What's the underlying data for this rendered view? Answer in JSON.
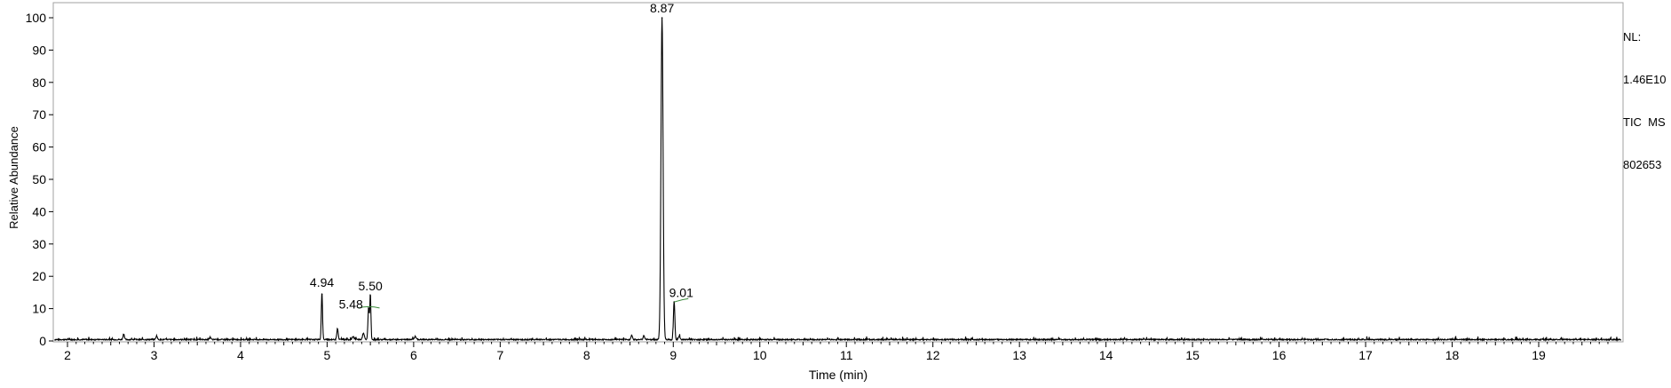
{
  "chart_data": {
    "type": "line",
    "xlabel": "Time (min)",
    "ylabel": "Relative Abundance",
    "xlim": [
      1.8,
      20.0
    ],
    "ylim": [
      0,
      102
    ],
    "x_ticks": [
      "2",
      "3",
      "4",
      "5",
      "6",
      "7",
      "8",
      "9",
      "10",
      "11",
      "12",
      "13",
      "14",
      "15",
      "16",
      "17",
      "18",
      "19"
    ],
    "y_ticks": [
      "0",
      "10",
      "20",
      "30",
      "40",
      "50",
      "60",
      "70",
      "80",
      "90",
      "100"
    ],
    "peak_labels": [
      {
        "text": "8.87",
        "x": 8.87,
        "y": 100
      },
      {
        "text": "4.94",
        "x": 4.94,
        "y": 14.5
      },
      {
        "text": "5.50",
        "x": 5.5,
        "y": 14.0
      },
      {
        "text": "5.48",
        "x": 5.48,
        "y": 10.0
      },
      {
        "text": "9.01",
        "x": 9.01,
        "y": 12.0
      }
    ],
    "peaks": [
      {
        "rt": 2.65,
        "height": 1.8,
        "width": 0.008
      },
      {
        "rt": 3.03,
        "height": 1.2,
        "width": 0.008
      },
      {
        "rt": 3.65,
        "height": 0.7,
        "width": 0.008
      },
      {
        "rt": 4.94,
        "height": 14.5,
        "width": 0.007
      },
      {
        "rt": 5.12,
        "height": 3.5,
        "width": 0.008
      },
      {
        "rt": 5.3,
        "height": 1.0,
        "width": 0.01
      },
      {
        "rt": 5.42,
        "height": 2.0,
        "width": 0.01
      },
      {
        "rt": 5.48,
        "height": 10.0,
        "width": 0.008
      },
      {
        "rt": 5.5,
        "height": 14.0,
        "width": 0.006
      },
      {
        "rt": 6.02,
        "height": 1.0,
        "width": 0.01
      },
      {
        "rt": 8.52,
        "height": 1.5,
        "width": 0.008
      },
      {
        "rt": 8.66,
        "height": 1.3,
        "width": 0.008
      },
      {
        "rt": 8.87,
        "height": 100,
        "width": 0.012
      },
      {
        "rt": 9.01,
        "height": 12.0,
        "width": 0.008
      },
      {
        "rt": 9.07,
        "height": 1.0,
        "width": 0.01
      }
    ],
    "trace_color": "#000000",
    "annotation_color": "#3a8a3a"
  },
  "normalization": {
    "line1": "NL:",
    "line2": "1.46E10",
    "line3": "TIC  MS",
    "line4": "802653"
  }
}
